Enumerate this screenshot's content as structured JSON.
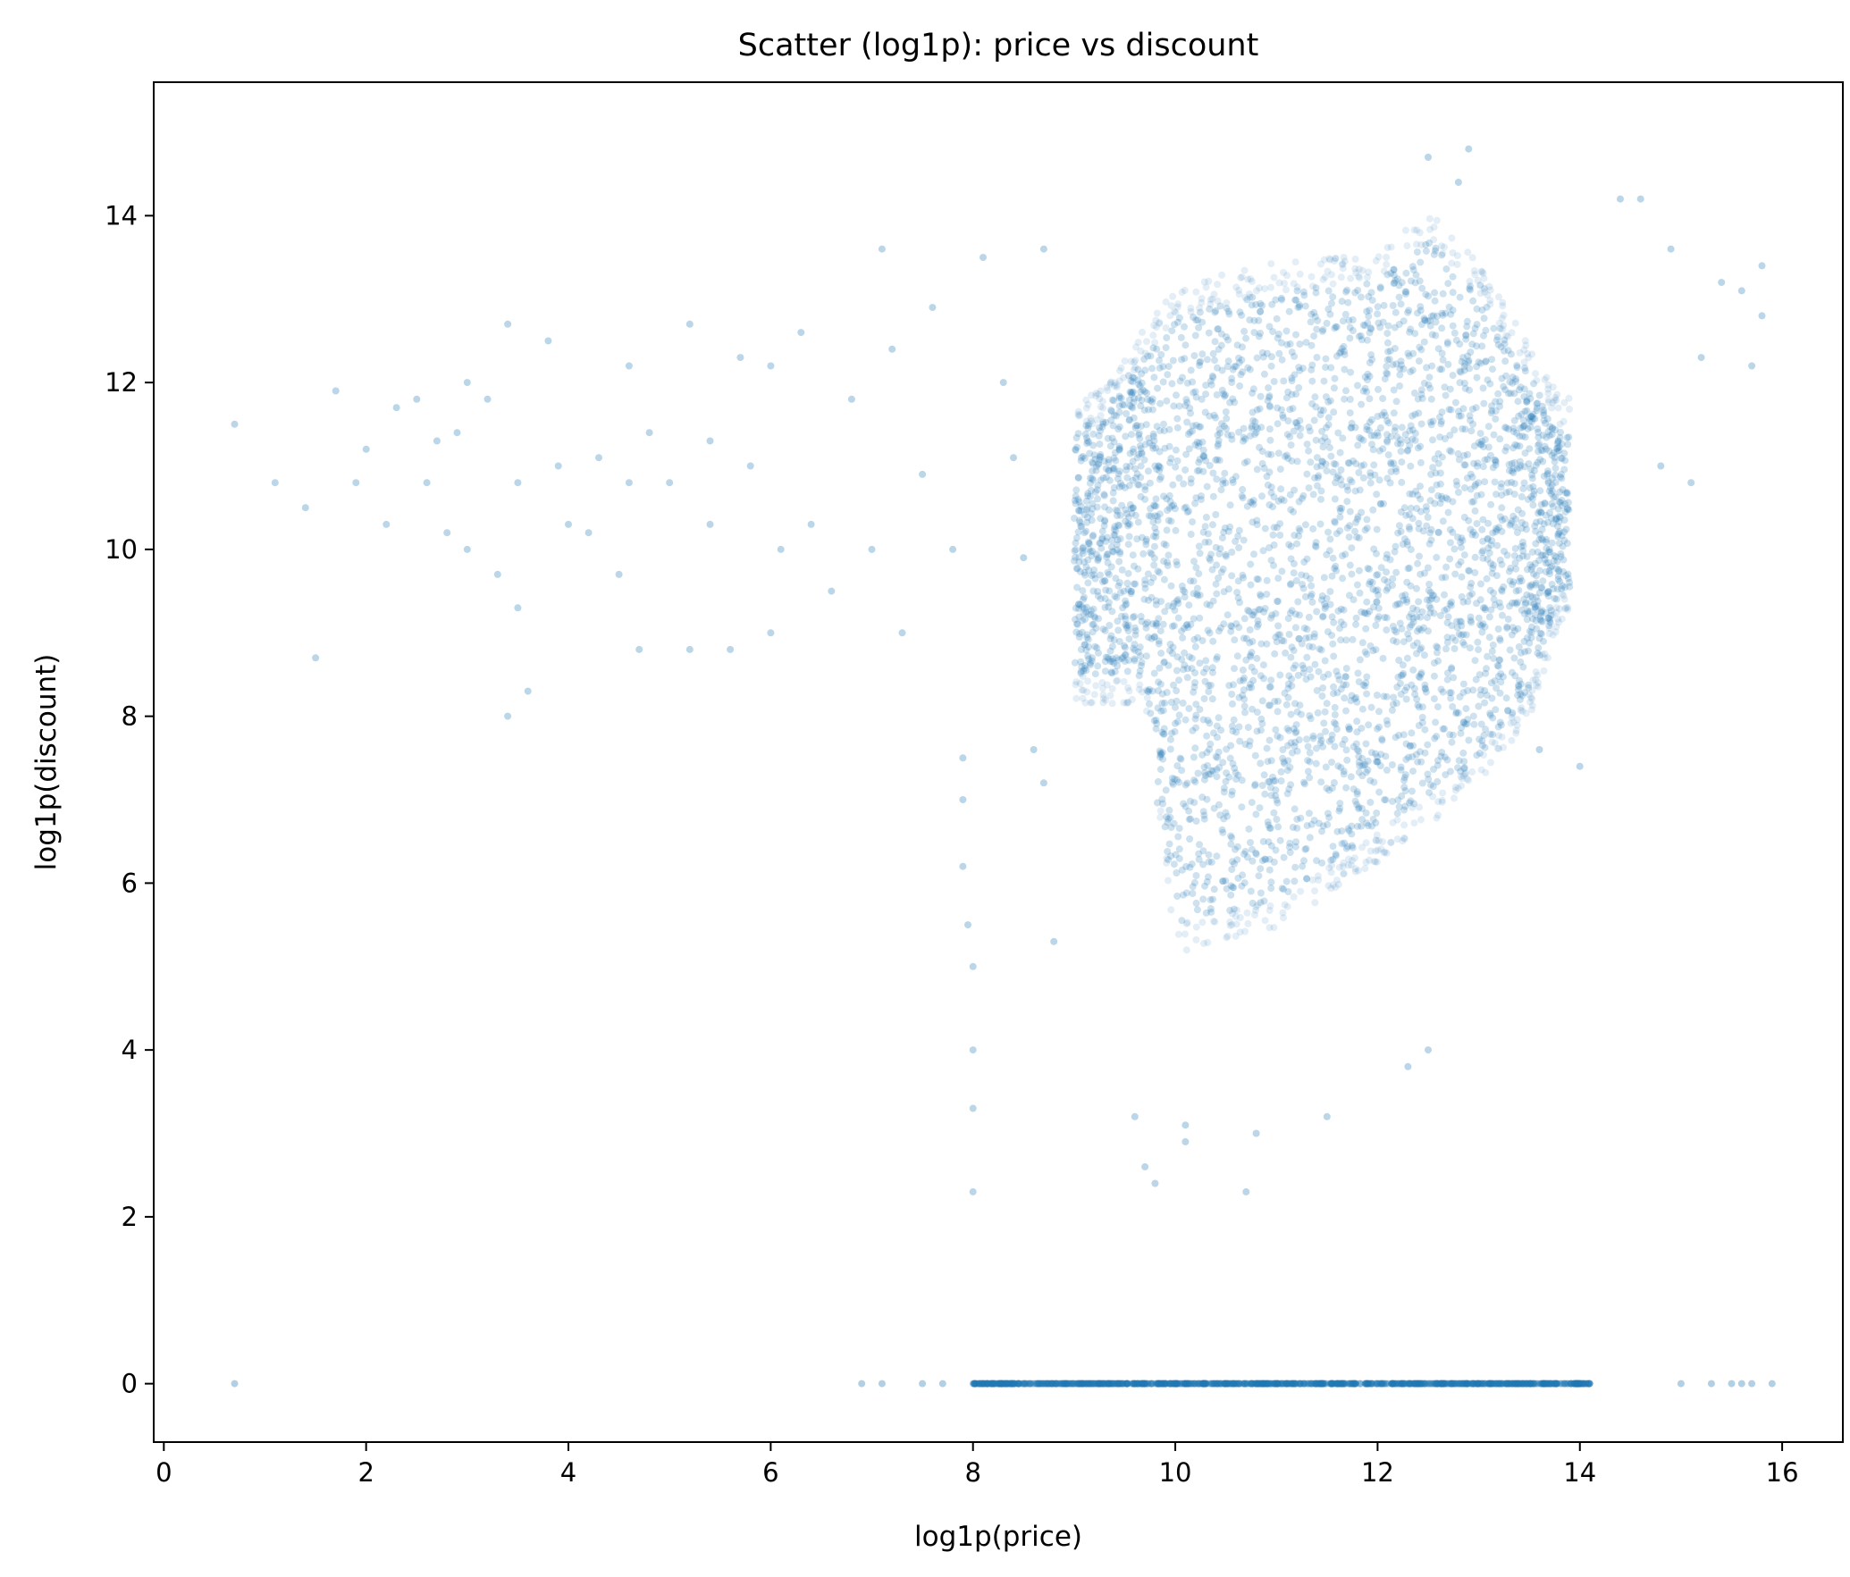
{
  "chart_data": {
    "type": "scatter",
    "title": "Scatter (log1p): price vs discount",
    "xlabel": "log1p(price)",
    "ylabel": "log1p(discount)",
    "xlim": [
      -0.1,
      16.6
    ],
    "ylim": [
      -0.7,
      15.6
    ],
    "xticks": [
      0,
      2,
      4,
      6,
      8,
      10,
      12,
      14,
      16
    ],
    "yticks": [
      0,
      2,
      4,
      6,
      8,
      10,
      12,
      14
    ],
    "grid": false,
    "marker_color": "#1f77b4",
    "series": [
      {
        "points_sparse_left": [
          [
            0.7,
            11.5
          ],
          [
            1.1,
            10.8
          ],
          [
            1.4,
            10.5
          ],
          [
            1.5,
            8.7
          ],
          [
            1.7,
            11.9
          ],
          [
            1.9,
            10.8
          ],
          [
            2.0,
            11.2
          ],
          [
            2.2,
            10.3
          ],
          [
            2.3,
            11.7
          ],
          [
            2.5,
            11.8
          ],
          [
            2.6,
            10.8
          ],
          [
            2.7,
            11.3
          ],
          [
            2.8,
            10.2
          ],
          [
            2.9,
            11.4
          ],
          [
            3.0,
            12.0
          ],
          [
            3.0,
            10.0
          ],
          [
            3.2,
            11.8
          ],
          [
            3.3,
            9.7
          ],
          [
            3.4,
            8.0
          ],
          [
            3.4,
            12.7
          ],
          [
            3.5,
            10.8
          ],
          [
            3.5,
            9.3
          ],
          [
            3.6,
            8.3
          ],
          [
            3.8,
            12.5
          ],
          [
            3.9,
            11.0
          ],
          [
            4.0,
            10.3
          ],
          [
            4.2,
            10.2
          ],
          [
            4.3,
            11.1
          ],
          [
            4.5,
            9.7
          ],
          [
            4.6,
            12.2
          ],
          [
            4.6,
            10.8
          ],
          [
            4.7,
            8.8
          ],
          [
            4.8,
            11.4
          ],
          [
            5.0,
            10.8
          ],
          [
            5.2,
            12.7
          ],
          [
            5.2,
            8.8
          ],
          [
            5.4,
            11.3
          ],
          [
            5.4,
            10.3
          ],
          [
            5.6,
            8.8
          ],
          [
            5.7,
            12.3
          ],
          [
            5.8,
            11.0
          ],
          [
            6.0,
            12.2
          ],
          [
            6.1,
            10.0
          ],
          [
            6.0,
            9.0
          ],
          [
            6.3,
            12.6
          ],
          [
            6.4,
            10.3
          ],
          [
            6.6,
            9.5
          ],
          [
            6.8,
            11.8
          ],
          [
            7.0,
            10.0
          ],
          [
            7.1,
            13.6
          ],
          [
            7.2,
            12.4
          ],
          [
            7.3,
            9.0
          ],
          [
            7.5,
            10.9
          ],
          [
            7.6,
            12.9
          ],
          [
            7.8,
            10.0
          ],
          [
            7.9,
            7.0
          ],
          [
            7.9,
            6.2
          ],
          [
            8.0,
            5.0
          ],
          [
            8.0,
            4.0
          ],
          [
            8.0,
            3.3
          ],
          [
            8.0,
            2.3
          ],
          [
            7.9,
            7.5
          ],
          [
            7.95,
            5.5
          ],
          [
            8.1,
            13.5
          ],
          [
            8.3,
            12.0
          ],
          [
            8.4,
            11.1
          ],
          [
            8.5,
            9.9
          ],
          [
            8.6,
            7.6
          ],
          [
            8.7,
            13.6
          ],
          [
            8.7,
            7.2
          ],
          [
            8.8,
            5.3
          ]
        ],
        "points_zero_band": [
          [
            0.7,
            0.0
          ],
          [
            6.9,
            0.0
          ],
          [
            7.1,
            0.0
          ],
          [
            7.5,
            0.0
          ],
          [
            7.7,
            0.0
          ],
          [
            8.2,
            0.0
          ],
          [
            15.0,
            0.0
          ],
          [
            15.3,
            0.0
          ],
          [
            15.5,
            0.0
          ],
          [
            15.6,
            0.0
          ],
          [
            15.7,
            0.0
          ],
          [
            15.9,
            0.0
          ]
        ],
        "points_outliers": [
          [
            9.6,
            3.2
          ],
          [
            9.7,
            2.6
          ],
          [
            9.8,
            2.4
          ],
          [
            10.1,
            3.1
          ],
          [
            10.1,
            2.9
          ],
          [
            10.7,
            2.3
          ],
          [
            10.8,
            3.0
          ],
          [
            11.5,
            3.2
          ],
          [
            12.5,
            4.0
          ],
          [
            12.3,
            3.8
          ],
          [
            13.6,
            7.6
          ],
          [
            14.0,
            7.4
          ],
          [
            14.4,
            14.2
          ],
          [
            14.6,
            14.2
          ],
          [
            14.9,
            13.6
          ],
          [
            15.4,
            13.2
          ],
          [
            15.6,
            13.1
          ],
          [
            15.7,
            12.2
          ],
          [
            15.8,
            13.4
          ],
          [
            15.8,
            12.8
          ],
          [
            14.8,
            11.0
          ],
          [
            15.1,
            10.8
          ],
          [
            15.2,
            12.3
          ],
          [
            12.9,
            14.8
          ],
          [
            12.8,
            14.4
          ],
          [
            12.5,
            14.7
          ]
        ],
        "dense_region": {
          "x_range": [
            9.0,
            13.9
          ],
          "y_range": [
            5.0,
            13.7
          ],
          "lower_edge": [
            [
              9.7,
              8.5
            ],
            [
              10.0,
              5.5
            ],
            [
              11.0,
              5.8
            ],
            [
              12.0,
              6.6
            ],
            [
              13.0,
              7.5
            ],
            [
              13.5,
              8.3
            ],
            [
              13.8,
              9.5
            ]
          ],
          "upper_edge": [
            [
              9.2,
              11.5
            ],
            [
              10.0,
              12.8
            ],
            [
              11.0,
              13.1
            ],
            [
              12.0,
              13.2
            ],
            [
              12.5,
              13.7
            ],
            [
              13.0,
              13.1
            ],
            [
              13.8,
              11.5
            ]
          ]
        },
        "dense_zero_band_x_range": [
          8.0,
          14.1
        ]
      }
    ]
  }
}
